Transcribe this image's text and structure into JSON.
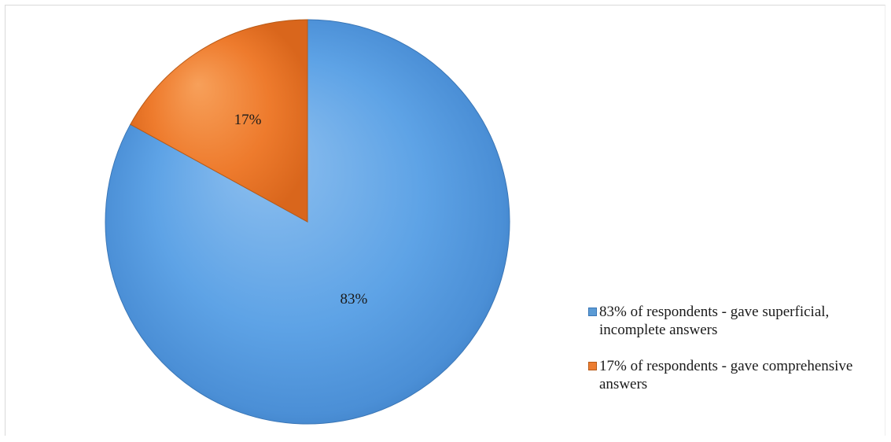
{
  "chart_data": {
    "type": "pie",
    "title": "",
    "slices": [
      {
        "label": "83% of respondents - gave superficial, incomplete answers",
        "value": 83,
        "data_label": "83%",
        "color": "#5b9bd5"
      },
      {
        "label": "17% of respondents - gave comprehensive answers",
        "value": 17,
        "data_label": "17%",
        "color": "#ed7d31"
      }
    ],
    "legend_position": "right",
    "style": "3d-shaded"
  }
}
